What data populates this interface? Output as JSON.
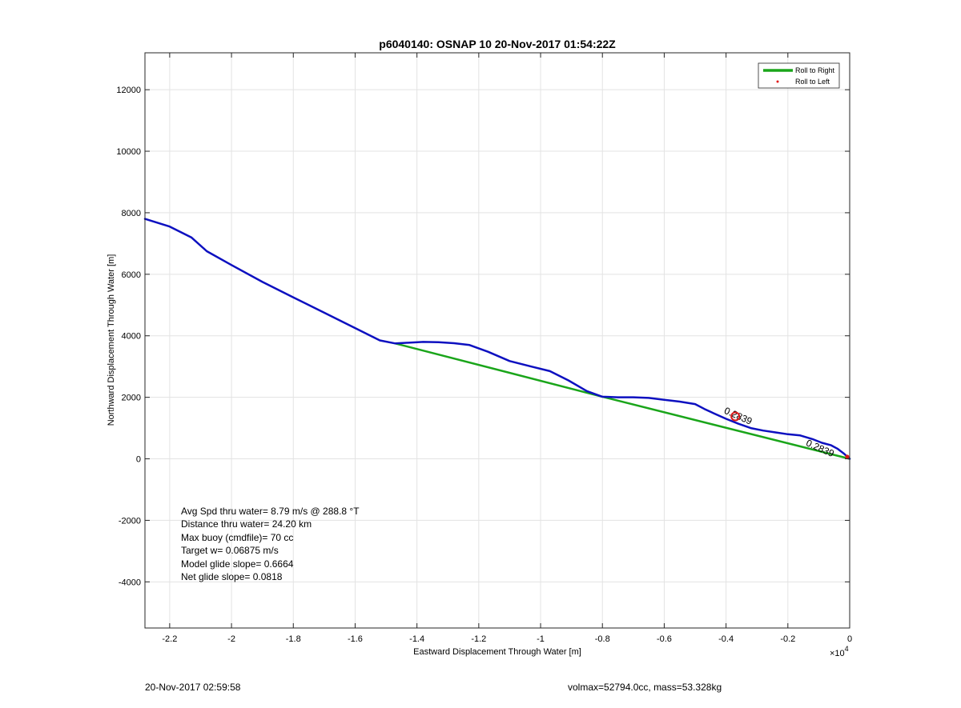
{
  "chart_data": {
    "type": "line",
    "title": "p6040140: OSNAP 10 20-Nov-2017 01:54:22Z",
    "xlabel": "Eastward Displacement Through Water [m]",
    "ylabel": "Northward Displacement Through Water [m]",
    "x_multiplier_label": "×10",
    "x_multiplier_exp": "4",
    "xlim": [
      -22800,
      0
    ],
    "ylim": [
      -5500,
      13200
    ],
    "xticks": [
      -22000,
      -20000,
      -18000,
      -16000,
      -14000,
      -12000,
      -10000,
      -8000,
      -6000,
      -4000,
      -2000,
      0
    ],
    "xtick_labels": [
      "-2.2",
      "-2",
      "-1.8",
      "-1.6",
      "-1.4",
      "-1.2",
      "-1",
      "-0.8",
      "-0.6",
      "-0.4",
      "-0.2",
      "0"
    ],
    "yticks": [
      -4000,
      -2000,
      0,
      2000,
      4000,
      6000,
      8000,
      10000,
      12000
    ],
    "ytick_labels": [
      "-4000",
      "-2000",
      "0",
      "2000",
      "4000",
      "6000",
      "8000",
      "10000",
      "12000"
    ],
    "grid": true,
    "legend": {
      "location": "top-right",
      "entries": [
        {
          "label": "Roll to Right",
          "color": "#1aa51a",
          "style": "line"
        },
        {
          "label": "Roll to Left",
          "color": "#e31a1a",
          "style": "dot"
        }
      ]
    },
    "series": [
      {
        "kind": "track",
        "color": "#0d10c0",
        "x": [
          -22800,
          -22000,
          -21300,
          -20800,
          -20000,
          -19000,
          -18000,
          -17000,
          -16000,
          -15200,
          -14700,
          -14400,
          -13800,
          -13300,
          -12800,
          -12300,
          -11700,
          -11000,
          -10300,
          -9700,
          -9100,
          -8500,
          -8000,
          -7500,
          -7000,
          -6500,
          -6000,
          -5500,
          -5000,
          -4700,
          -4400,
          -4000,
          -3600,
          -3200,
          -2800,
          -2400,
          -2000,
          -1600,
          -1200,
          -900,
          -600,
          -400,
          -200,
          0
        ],
        "y": [
          7800,
          7550,
          7200,
          6750,
          6300,
          5750,
          5250,
          4750,
          4250,
          3850,
          3750,
          3770,
          3800,
          3790,
          3760,
          3700,
          3480,
          3180,
          3000,
          2850,
          2550,
          2200,
          2020,
          2000,
          2000,
          1980,
          1920,
          1860,
          1780,
          1620,
          1480,
          1300,
          1140,
          1000,
          920,
          860,
          800,
          760,
          640,
          520,
          440,
          330,
          180,
          0
        ]
      },
      {
        "name": "Roll to Right",
        "color": "#1aa51a",
        "x": [
          -14700,
          -8000,
          0
        ],
        "y": [
          3750,
          2020,
          0
        ]
      }
    ],
    "annotations": [
      {
        "text": "0.2839",
        "x": -3650,
        "y": 1300,
        "rotate": 24
      },
      {
        "text": "0.2839",
        "x": -1000,
        "y": 250,
        "rotate": 24
      }
    ],
    "markers": [
      {
        "kind": "circle",
        "x": -3700,
        "y": 1380,
        "color": "#d81818"
      },
      {
        "kind": "dot",
        "x": -80,
        "y": 70,
        "color": "#d81818"
      }
    ]
  },
  "stats": {
    "avg_spd": "Avg Spd thru water=  8.79 m/s @ 288.8 °T",
    "distance": "Distance thru water= 24.20 km",
    "max_buoy": "Max buoy (cmdfile)= 70 cc",
    "target_w": "Target w= 0.06875 m/s",
    "model_glide": "Model glide slope= 0.6664",
    "net_glide": "Net glide slope= 0.0818"
  },
  "footer": {
    "timestamp": "20-Nov-2017 02:59:58",
    "vol_mass": "volmax=52794.0cc, mass=53.328kg"
  }
}
